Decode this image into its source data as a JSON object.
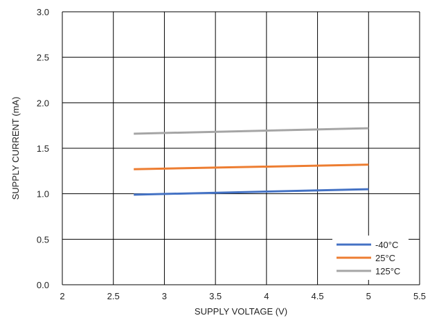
{
  "chart_data": {
    "type": "line",
    "title": "",
    "xlabel": "SUPPLY VOLTAGE (V)",
    "ylabel": "SUPPLY CURRENT (mA)",
    "xlim": [
      2,
      5.5
    ],
    "ylim": [
      0,
      3.0
    ],
    "xticks": [
      "2",
      "2.5",
      "3",
      "3.5",
      "4",
      "4.5",
      "5",
      "5.5"
    ],
    "yticks": [
      "0.0",
      "0.5",
      "1.0",
      "1.5",
      "2.0",
      "2.5",
      "3.0"
    ],
    "grid": true,
    "legend_position": "bottom-right",
    "series": [
      {
        "name": "-40°C",
        "color": "#4472C4",
        "x": [
          2.7,
          5.0
        ],
        "y": [
          0.99,
          1.05
        ]
      },
      {
        "name": "25°C",
        "color": "#ED7D31",
        "x": [
          2.7,
          5.0
        ],
        "y": [
          1.27,
          1.32
        ]
      },
      {
        "name": "125°C",
        "color": "#A5A5A5",
        "x": [
          2.7,
          5.0
        ],
        "y": [
          1.66,
          1.72
        ]
      }
    ]
  }
}
